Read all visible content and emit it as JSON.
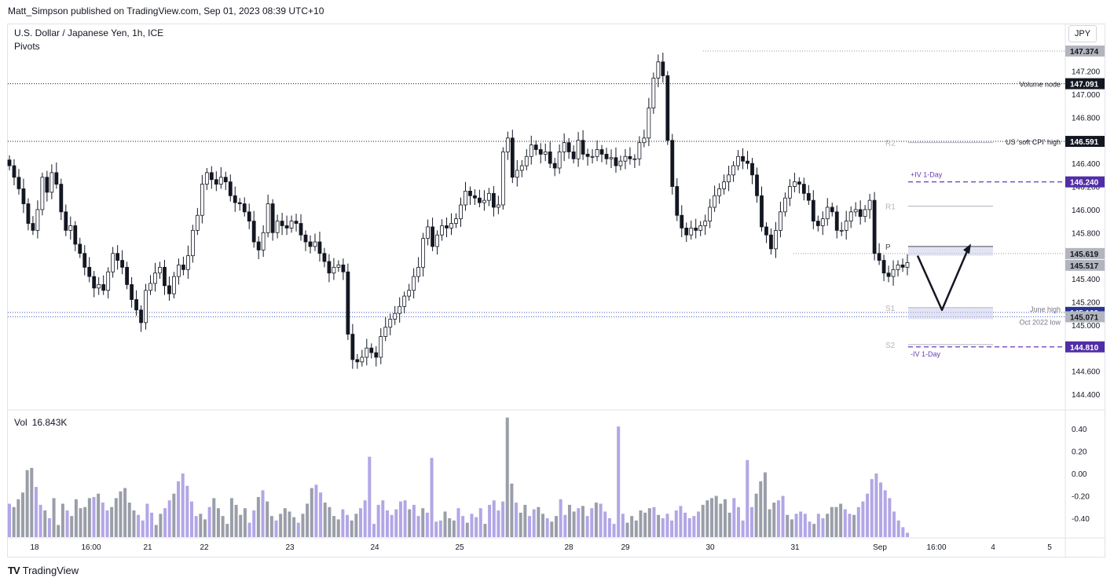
{
  "header": {
    "publisher": "Matt_Simpson published on TradingView.com, Sep 01, 2023 08:39 UTC+10",
    "symbol_title": "U.S. Dollar / Japanese Yen, 1h, ICE",
    "indicator": "Pivots",
    "currency_button": "JPY"
  },
  "footer": {
    "brand": "TradingView",
    "logo": "TV"
  },
  "volume_legend": {
    "label": "Vol",
    "value": "16.843K"
  },
  "colors": {
    "bull": "#b2a6e6",
    "bear": "#9a9ea8",
    "candle": "#131722",
    "purple": "#673ab7",
    "dotted": "#131722",
    "pivot_line": "#b2b5be",
    "zone": "#c5cae9"
  },
  "chart_data": {
    "type": "candlestick",
    "price_ticks": [
      "147.200",
      "147.000",
      "146.800",
      "146.600",
      "146.400",
      "146.200",
      "146.000",
      "145.800",
      "145.600",
      "145.400",
      "145.200",
      "145.000",
      "144.800",
      "144.600",
      "144.400"
    ],
    "ylim": [
      144.32,
      147.46
    ],
    "x_ticks": [
      "18",
      "16:00",
      "21",
      "22",
      "23",
      "24",
      "25",
      "28",
      "29",
      "30",
      "31",
      "Sep",
      "16:00",
      "4",
      "5"
    ],
    "volume_ticks": [
      "0.40",
      "0.20",
      "0.00",
      "-0.20",
      "-0.40"
    ],
    "volume_ylim": [
      -0.58,
      0.52
    ],
    "closes": [
      146.38,
      146.28,
      146.18,
      146.05,
      145.88,
      145.82,
      146.0,
      146.28,
      146.15,
      146.32,
      146.22,
      145.98,
      145.82,
      145.86,
      145.7,
      145.62,
      145.5,
      145.42,
      145.32,
      145.35,
      145.3,
      145.46,
      145.62,
      145.56,
      145.5,
      145.35,
      145.22,
      145.13,
      145.02,
      145.3,
      145.36,
      145.45,
      145.5,
      145.34,
      145.27,
      145.42,
      145.52,
      145.48,
      145.6,
      145.82,
      145.95,
      146.22,
      146.32,
      146.26,
      146.22,
      146.28,
      146.24,
      146.12,
      146.06,
      146.05,
      145.98,
      145.9,
      145.72,
      145.65,
      145.8,
      146.05,
      145.8,
      145.9,
      145.86,
      145.84,
      145.9,
      145.88,
      145.78,
      145.72,
      145.68,
      145.72,
      145.62,
      145.55,
      145.45,
      145.5,
      145.52,
      145.46,
      144.92,
      144.7,
      144.68,
      144.72,
      144.8,
      144.76,
      144.72,
      144.9,
      144.98,
      145.05,
      145.1,
      145.16,
      145.25,
      145.3,
      145.42,
      145.5,
      145.75,
      145.85,
      145.68,
      145.78,
      145.86,
      145.84,
      145.88,
      145.92,
      146.04,
      146.16,
      146.12,
      146.1,
      146.06,
      146.08,
      146.14,
      146.02,
      146.04,
      146.5,
      146.62,
      146.28,
      146.34,
      146.38,
      146.46,
      146.56,
      146.52,
      146.48,
      146.5,
      146.4,
      146.36,
      146.5,
      146.58,
      146.5,
      146.44,
      146.6,
      146.48,
      146.46,
      146.46,
      146.52,
      146.48,
      146.44,
      146.45,
      146.38,
      146.42,
      146.46,
      146.44,
      146.44,
      146.58,
      146.62,
      146.88,
      147.14,
      147.28,
      147.16,
      146.6,
      146.2,
      145.95,
      145.84,
      145.78,
      145.84,
      145.82,
      145.86,
      145.9,
      146.02,
      146.12,
      146.18,
      146.24,
      146.3,
      146.38,
      146.46,
      146.42,
      146.4,
      146.3,
      146.12,
      145.85,
      145.78,
      145.66,
      145.82,
      145.98,
      146.1,
      146.2,
      146.24,
      146.22,
      146.14,
      146.08,
      145.9,
      145.86,
      145.92,
      146.02,
      145.98,
      145.82,
      145.82,
      145.9,
      145.98,
      146.0,
      145.94,
      146.0,
      146.08,
      145.62,
      145.56,
      145.45,
      145.42,
      145.48,
      145.52,
      145.5,
      145.54
    ],
    "volumes": [
      -0.27,
      -0.3,
      -0.23,
      -0.17,
      0.03,
      0.05,
      -0.12,
      -0.28,
      -0.33,
      -0.4,
      -0.22,
      -0.46,
      -0.27,
      -0.33,
      -0.38,
      -0.23,
      -0.31,
      -0.3,
      -0.22,
      -0.21,
      -0.18,
      -0.26,
      -0.33,
      -0.3,
      -0.22,
      -0.16,
      -0.13,
      -0.26,
      -0.33,
      -0.37,
      -0.42,
      -0.27,
      -0.35,
      -0.46,
      -0.36,
      -0.31,
      -0.24,
      -0.18,
      -0.07,
      0.0,
      -0.11,
      -0.25,
      -0.38,
      -0.36,
      -0.41,
      -0.3,
      -0.22,
      -0.31,
      -0.38,
      -0.45,
      -0.22,
      -0.28,
      -0.37,
      -0.31,
      -0.44,
      -0.33,
      -0.21,
      -0.15,
      -0.25,
      -0.38,
      -0.42,
      -0.36,
      -0.31,
      -0.34,
      -0.39,
      -0.44,
      -0.36,
      -0.27,
      -0.13,
      -0.1,
      -0.17,
      -0.26,
      -0.3,
      -0.38,
      -0.41,
      -0.32,
      -0.37,
      -0.42,
      -0.36,
      -0.31,
      -0.24,
      -0.33,
      -0.45,
      -0.28,
      -0.24,
      -0.33,
      -0.37,
      -0.32,
      -0.25,
      -0.24,
      -0.32,
      -0.28,
      -0.38,
      -0.31,
      -0.35,
      -0.36,
      -0.43,
      -0.42,
      -0.34,
      -0.4,
      -0.42,
      -0.31,
      -0.38,
      -0.44,
      -0.36,
      -0.39,
      -0.31,
      -0.45,
      -0.28,
      -0.24,
      -0.33,
      -0.25,
      -0.18,
      -0.09,
      -0.26,
      -0.35,
      -0.28,
      -0.38,
      -0.32,
      -0.3,
      -0.36,
      -0.4,
      -0.43,
      -0.38,
      -0.23,
      -0.37,
      -0.28,
      -0.34,
      -0.31,
      -0.29,
      -0.38,
      -0.31,
      -0.26,
      -0.27,
      -0.34,
      -0.4,
      -0.45,
      -0.3,
      -0.36,
      -0.44,
      -0.38,
      -0.42,
      -0.33,
      -0.35,
      -0.31,
      -0.3,
      -0.37,
      -0.4,
      -0.36,
      -0.42,
      -0.33,
      -0.29,
      -0.35,
      -0.4,
      -0.38,
      -0.34,
      -0.28,
      -0.24,
      -0.22,
      -0.2,
      -0.27,
      -0.23,
      -0.35,
      -0.22,
      -0.3,
      -0.42,
      -0.38,
      -0.3,
      -0.18,
      -0.07,
      0.01,
      -0.32,
      -0.26,
      -0.24,
      -0.2,
      -0.37,
      -0.41,
      -0.36,
      -0.34,
      -0.36,
      -0.43,
      -0.45,
      -0.36,
      -0.4,
      -0.36,
      -0.3,
      -0.3,
      -0.27,
      -0.32,
      -0.36,
      -0.37,
      -0.3,
      -0.25,
      -0.18,
      -0.05,
      0.0,
      -0.08,
      -0.15,
      -0.22,
      -0.34,
      -0.42,
      -0.48,
      -0.53
    ],
    "volume_spikes": [
      {
        "index": 112,
        "value": 0.5
      },
      {
        "index": 137,
        "value": 0.42
      },
      {
        "index": 166,
        "value": 0.12
      },
      {
        "index": 95,
        "value": 0.14
      },
      {
        "index": 81,
        "value": 0.15
      }
    ],
    "price_labels": [
      {
        "text": "147.374",
        "price": 147.374,
        "kind": "grey"
      },
      {
        "text": "147.091",
        "price": 147.091,
        "kind": "dark"
      },
      {
        "text": "146.591",
        "price": 146.591,
        "kind": "dark"
      },
      {
        "text": "146.240",
        "price": 146.24,
        "kind": "purple"
      },
      {
        "text": "145.619",
        "price": 145.619,
        "kind": "grey"
      },
      {
        "text": "145.517",
        "price": 145.517,
        "kind": "grey"
      },
      {
        "text": "145.109",
        "price": 145.109,
        "kind": "blue"
      },
      {
        "text": "145.071",
        "price": 145.071,
        "kind": "grey"
      },
      {
        "text": "144.810",
        "price": 144.81,
        "kind": "purple"
      }
    ],
    "levels": [
      {
        "name": "Volume node",
        "price": 147.091,
        "style": "dotted"
      },
      {
        "name": "US 'soft CPI' high",
        "price": 146.591,
        "style": "dotted"
      },
      {
        "name": "+IV 1-Day",
        "price": 146.24,
        "style": "dashed-purple"
      },
      {
        "name": "-IV 1-Day",
        "price": 144.81,
        "style": "dashed-purple"
      },
      {
        "name": "June high",
        "price": 145.109,
        "style": "dotted-blue"
      },
      {
        "name": "Oct 2022 low",
        "price": 145.071,
        "style": "dotted-blue"
      }
    ],
    "pivots": [
      {
        "name": "R2",
        "price": 146.58
      },
      {
        "name": "R1",
        "price": 146.03
      },
      {
        "name": "P",
        "price": 145.68
      },
      {
        "name": "S1",
        "price": 145.15
      },
      {
        "name": "S2",
        "price": 144.83
      }
    ],
    "projection": "V-shaped path from 145.62 down to about 145.13, then back up to about 145.68"
  }
}
